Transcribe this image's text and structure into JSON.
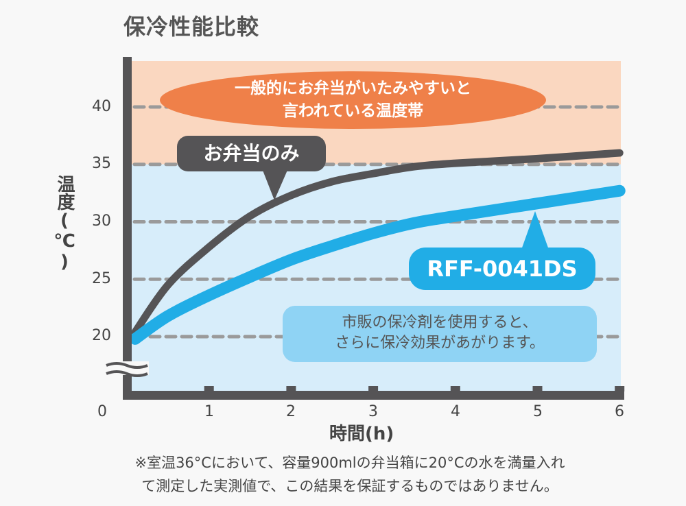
{
  "title": "保冷性能比較",
  "chart_data": {
    "type": "line",
    "title": "保冷性能比較",
    "xlabel": "時間(h)",
    "ylabel": "温度(℃)",
    "xlim": [
      0,
      6
    ],
    "ylim": [
      20,
      40
    ],
    "y_axis_break": true,
    "x_ticks": [
      "0",
      "1",
      "2",
      "3",
      "4",
      "5",
      "6"
    ],
    "y_ticks": [
      "20",
      "25",
      "30",
      "35",
      "40"
    ],
    "grid": "horizontal dashed",
    "bands": [
      {
        "from": 35,
        "to": 44,
        "color": "#fad7c0"
      },
      {
        "from": 15,
        "to": 35,
        "color": "#d7edfa"
      }
    ],
    "series": [
      {
        "name": "お弁当のみ",
        "color": "#555456",
        "x": [
          0.1,
          0.5,
          1,
          1.5,
          2,
          2.5,
          3,
          3.5,
          4,
          5,
          6
        ],
        "y": [
          20.4,
          24.5,
          27.8,
          30.5,
          32.3,
          33.5,
          34.2,
          34.8,
          35.1,
          35.5,
          36
        ]
      },
      {
        "name": "RFF-0041DS",
        "color": "#21ade6",
        "x": [
          0.1,
          0.5,
          1,
          1.5,
          2,
          2.5,
          3,
          3.5,
          4,
          5,
          6
        ],
        "y": [
          19.8,
          21.8,
          23.6,
          25.2,
          26.7,
          27.9,
          29,
          29.9,
          30.5,
          31.6,
          32.7
        ]
      }
    ],
    "annotations": {
      "danger_zone": [
        "一般的にお弁当がいたみやすいと",
        "言われている温度帯"
      ],
      "ice_pack_note": [
        "市販の保冷剤を使用すると、",
        "さらに保冷効果があがります。"
      ]
    }
  },
  "footnote": [
    "※室温36°Cにおいて、容量900mlの弁当箱に20°Cの水を満量入れ",
    "て測定した実測値で、この結果を保証するものではありません。"
  ]
}
